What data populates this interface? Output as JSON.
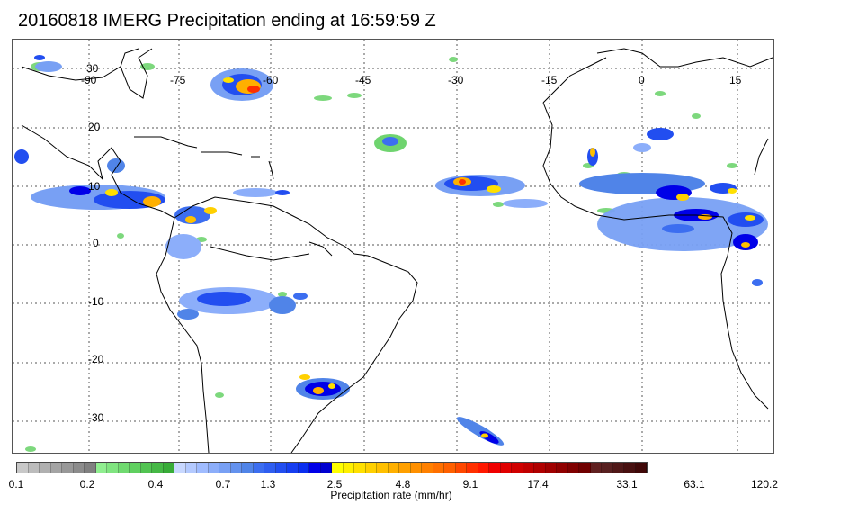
{
  "title": "20160818 IMERG Precipitation ending at 16:59:59 Z",
  "map": {
    "lon_ticks": [
      "-90",
      "-75",
      "-60",
      "-45",
      "-30",
      "-15",
      "0",
      "15"
    ],
    "lat_ticks": [
      "30",
      "20",
      "10",
      "0",
      "-10",
      "-20",
      "-30"
    ],
    "gridlines": true,
    "coastline_color": "#000000",
    "grid_color": "#555555"
  },
  "colorbar": {
    "label": "Precipitation rate (mm/hr)",
    "tick_labels": [
      "0.1",
      "0.2",
      "0.4",
      "0.7",
      "1.3",
      "2.5",
      "4.8",
      "9.1",
      "17.4",
      "33.1",
      "63.1",
      "120.2"
    ],
    "colors": [
      "#c8c8c8",
      "#bcbcbc",
      "#b0b0b0",
      "#a4a4a4",
      "#989898",
      "#8c8c8c",
      "#808080",
      "#90ee90",
      "#80e480",
      "#70da70",
      "#60d060",
      "#52c452",
      "#45b845",
      "#38ac38",
      "#c8d8ff",
      "#b4caff",
      "#a0bcff",
      "#8caefa",
      "#78a0f4",
      "#6492ee",
      "#5084e8",
      "#3c6ef0",
      "#2f5ef0",
      "#224ef0",
      "#163ef0",
      "#0a2ef0",
      "#0000e8",
      "#0000d0",
      "#ffff00",
      "#fff000",
      "#ffe000",
      "#ffd000",
      "#ffc000",
      "#ffb000",
      "#ffa000",
      "#ff9000",
      "#ff8000",
      "#ff7000",
      "#ff6000",
      "#ff4800",
      "#ff3000",
      "#ff1800",
      "#f00000",
      "#e00000",
      "#d00000",
      "#c00000",
      "#b00000",
      "#a00000",
      "#900000",
      "#800000",
      "#700000",
      "#602020",
      "#582020",
      "#501818",
      "#481010",
      "#400808"
    ]
  }
}
